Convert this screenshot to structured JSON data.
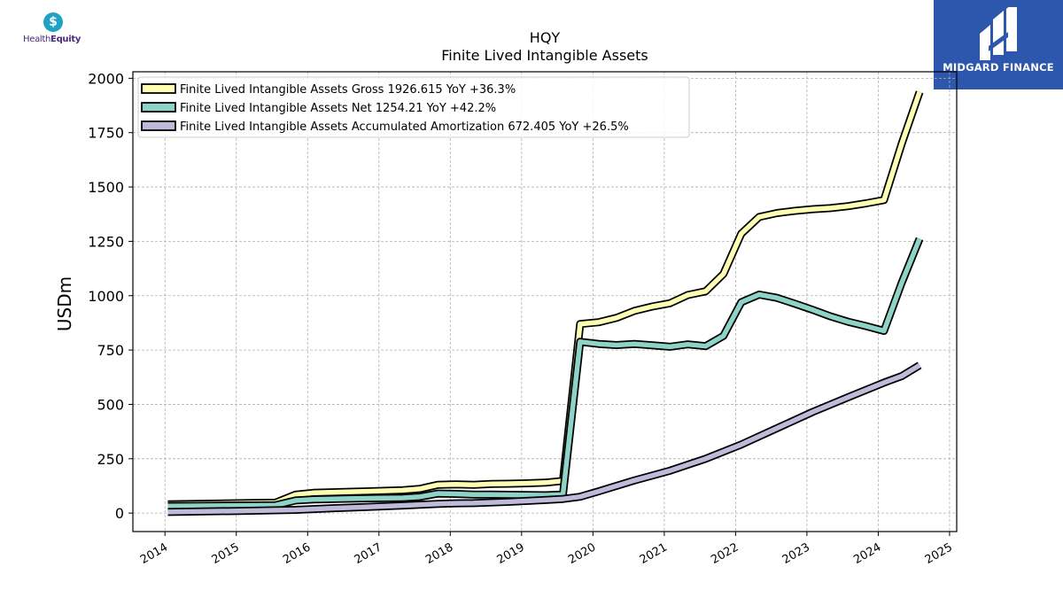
{
  "logos": {
    "left_brand_part1": "Health",
    "left_brand_part2": "Equity",
    "left_brand_icon": "dollar-drop-icon",
    "right_brand": "MIDGARD FINANCE",
    "right_brand_icon": "midgard-m-icon"
  },
  "chart_data": {
    "type": "line",
    "title": "HQY",
    "subtitle": "Finite Lived Intangible Assets",
    "xlabel": "",
    "ylabel": "USDm",
    "xlim": [
      2013.55,
      2025.1
    ],
    "ylim": [
      -85,
      2030
    ],
    "xticks": [
      2014,
      2015,
      2016,
      2017,
      2018,
      2019,
      2020,
      2021,
      2022,
      2023,
      2024,
      2025
    ],
    "xtick_labels": [
      "2014",
      "2015",
      "2016",
      "2017",
      "2018",
      "2019",
      "2020",
      "2021",
      "2022",
      "2023",
      "2024",
      "2025"
    ],
    "yticks": [
      0,
      250,
      500,
      750,
      1000,
      1250,
      1500,
      1750,
      2000
    ],
    "ytick_labels": [
      "0",
      "250",
      "500",
      "750",
      "1000",
      "1250",
      "1500",
      "1750",
      "2000"
    ],
    "grid": true,
    "legend_position": "top-left",
    "series": [
      {
        "name": "Finite Lived Intangible Assets Gross",
        "legend_label": "Finite Lived Intangible Assets Gross  1926.615 YoY +36.3%",
        "color": "#ffffb3",
        "points": [
          [
            2014.04,
            40
          ],
          [
            2015.55,
            48
          ],
          [
            2015.83,
            85
          ],
          [
            2016.08,
            93
          ],
          [
            2016.58,
            98
          ],
          [
            2016.83,
            100
          ],
          [
            2017.33,
            105
          ],
          [
            2017.58,
            112
          ],
          [
            2017.83,
            130
          ],
          [
            2018.08,
            132
          ],
          [
            2018.33,
            130
          ],
          [
            2018.58,
            134
          ],
          [
            2018.83,
            135
          ],
          [
            2019.08,
            137
          ],
          [
            2019.33,
            140
          ],
          [
            2019.58,
            148
          ],
          [
            2019.82,
            870
          ],
          [
            2020.08,
            878
          ],
          [
            2020.33,
            898
          ],
          [
            2020.58,
            930
          ],
          [
            2020.83,
            950
          ],
          [
            2021.08,
            965
          ],
          [
            2021.33,
            1003
          ],
          [
            2021.58,
            1020
          ],
          [
            2021.83,
            1100
          ],
          [
            2022.08,
            1285
          ],
          [
            2022.33,
            1362
          ],
          [
            2022.58,
            1380
          ],
          [
            2022.83,
            1390
          ],
          [
            2023.08,
            1398
          ],
          [
            2023.33,
            1403
          ],
          [
            2023.58,
            1412
          ],
          [
            2023.83,
            1425
          ],
          [
            2024.08,
            1440
          ],
          [
            2024.33,
            1700
          ],
          [
            2024.58,
            1937
          ]
        ]
      },
      {
        "name": "Finite Lived Intangible Assets Net",
        "legend_label": "Finite Lived Intangible Assets Net  1254.21 YoY +42.2%",
        "color": "#8dd3c7",
        "points": [
          [
            2014.04,
            32
          ],
          [
            2015.55,
            36
          ],
          [
            2015.83,
            58
          ],
          [
            2016.08,
            63
          ],
          [
            2016.58,
            66
          ],
          [
            2016.83,
            68
          ],
          [
            2017.33,
            70
          ],
          [
            2017.58,
            75
          ],
          [
            2017.83,
            90
          ],
          [
            2018.08,
            88
          ],
          [
            2018.33,
            85
          ],
          [
            2018.58,
            85
          ],
          [
            2018.83,
            84
          ],
          [
            2019.08,
            83
          ],
          [
            2019.33,
            82
          ],
          [
            2019.58,
            85
          ],
          [
            2019.82,
            788
          ],
          [
            2020.08,
            778
          ],
          [
            2020.33,
            773
          ],
          [
            2020.58,
            778
          ],
          [
            2020.83,
            772
          ],
          [
            2021.08,
            765
          ],
          [
            2021.33,
            776
          ],
          [
            2021.58,
            768
          ],
          [
            2021.83,
            815
          ],
          [
            2022.08,
            970
          ],
          [
            2022.33,
            1005
          ],
          [
            2022.58,
            990
          ],
          [
            2022.83,
            963
          ],
          [
            2023.08,
            935
          ],
          [
            2023.33,
            905
          ],
          [
            2023.58,
            880
          ],
          [
            2023.83,
            860
          ],
          [
            2024.08,
            838
          ],
          [
            2024.33,
            1060
          ],
          [
            2024.58,
            1262
          ]
        ]
      },
      {
        "name": "Finite Lived Intangible Assets Accumulated Amortization",
        "legend_label": "Finite Lived Intangible Assets Accumulated Amortization  672.405 YoY +26.5%",
        "color": "#bebada",
        "points": [
          [
            2014.04,
            5
          ],
          [
            2015.04,
            10
          ],
          [
            2015.83,
            15
          ],
          [
            2016.33,
            22
          ],
          [
            2016.83,
            28
          ],
          [
            2017.33,
            35
          ],
          [
            2017.83,
            42
          ],
          [
            2018.08,
            45
          ],
          [
            2018.33,
            46
          ],
          [
            2018.83,
            52
          ],
          [
            2019.33,
            60
          ],
          [
            2019.58,
            65
          ],
          [
            2019.82,
            75
          ],
          [
            2020.08,
            100
          ],
          [
            2020.58,
            150
          ],
          [
            2021.08,
            195
          ],
          [
            2021.58,
            250
          ],
          [
            2022.08,
            315
          ],
          [
            2022.58,
            390
          ],
          [
            2023.08,
            465
          ],
          [
            2023.58,
            533
          ],
          [
            2024.08,
            600
          ],
          [
            2024.33,
            630
          ],
          [
            2024.58,
            680
          ]
        ]
      }
    ]
  }
}
